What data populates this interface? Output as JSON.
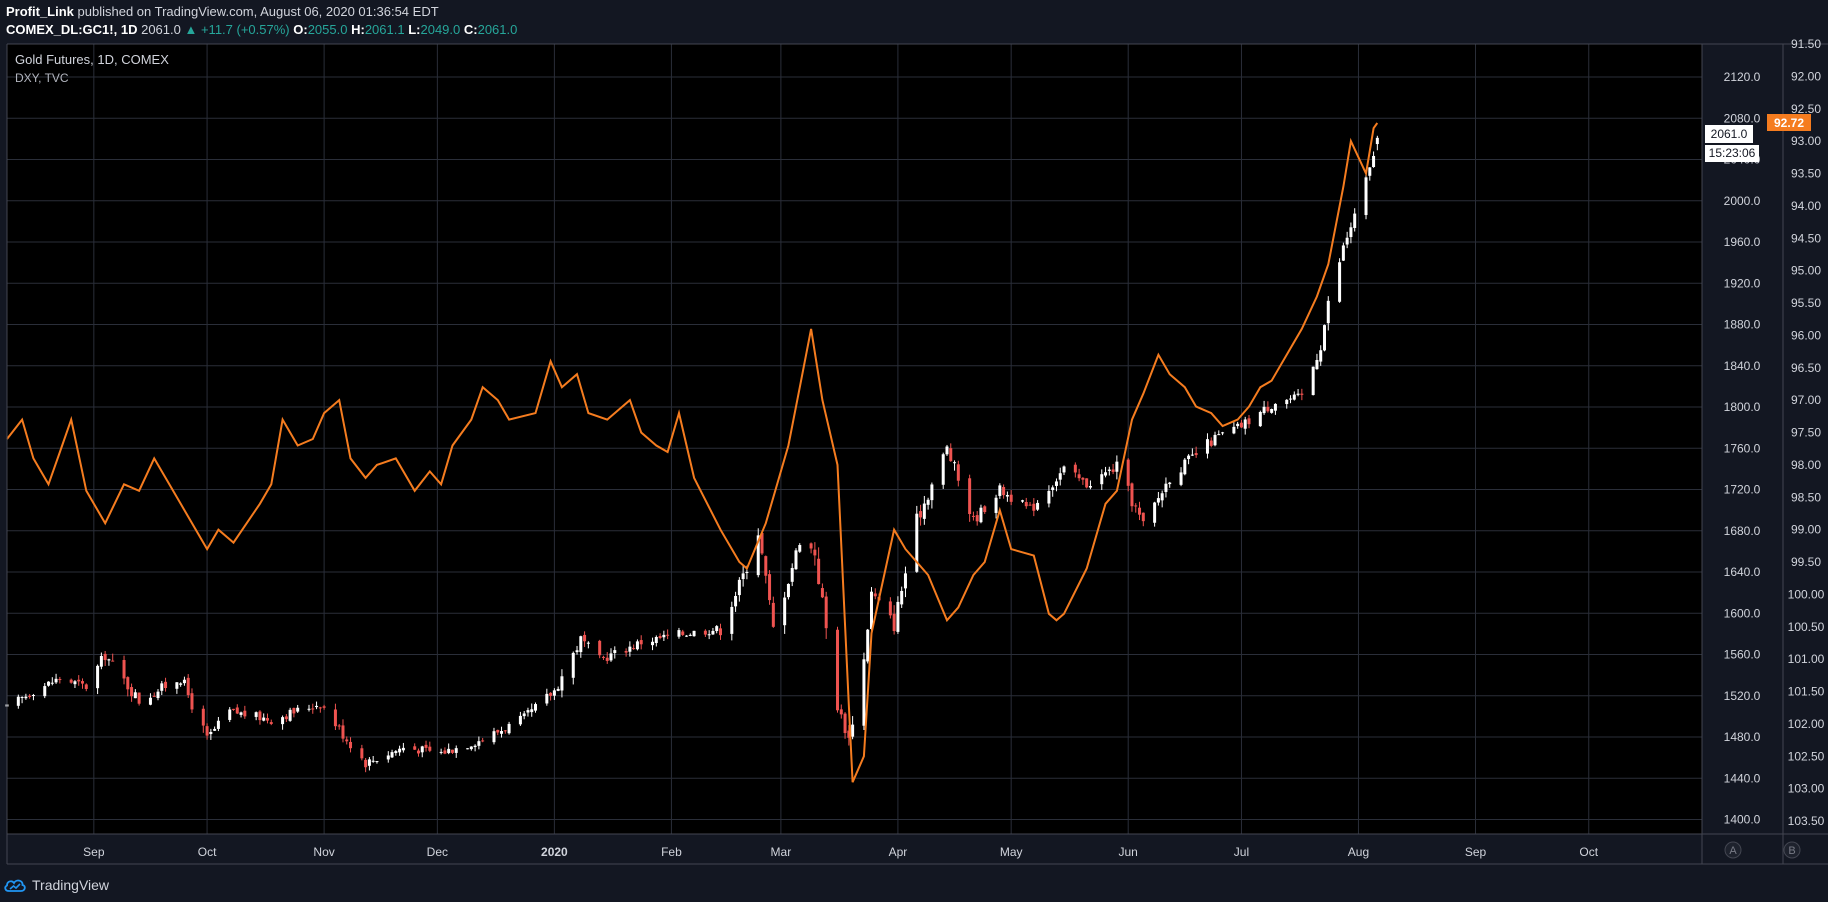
{
  "header": {
    "author": "Profit_Link",
    "published_text": "published on TradingView.com, August 06, 2020 01:36:54 EDT",
    "symbol": "COMEX_DL:GC1!, 1D",
    "change": "▲ +11.7 (+0.57%)",
    "last": "2061.0",
    "o_label": "O:",
    "o_value": "2055.0",
    "h_label": "H:",
    "h_value": "2061.1",
    "l_label": "L:",
    "l_value": "2049.0",
    "c_label": "C:",
    "c_value": "2061.0"
  },
  "legend": {
    "main": "Gold Futures, 1D, COMEX",
    "compare": "DXY, TVC"
  },
  "price_badge": "2061.0",
  "time_badge": "15:23:06",
  "dxy_badge": "92.72",
  "scale_buttons": [
    "A",
    "B"
  ],
  "footer": {
    "brand": "TradingView"
  },
  "colors": {
    "background": "#131722",
    "plot_background": "#000000",
    "grid": "#2a2e39",
    "dxy_line": "#f57c1f",
    "candle_up": "#ffffff",
    "candle_down": "#ef5350",
    "text": "#d1d4dc"
  },
  "chart_data": {
    "type": "line",
    "title": "Gold Futures, 1D, COMEX",
    "x_axis_labels": [
      "Sep",
      "Oct",
      "Nov",
      "Dec",
      "2020",
      "Feb",
      "Mar",
      "Apr",
      "May",
      "Jun",
      "Jul",
      "Aug",
      "Sep",
      "Oct"
    ],
    "x_range": [
      "2019-08-09",
      "2020-10-31"
    ],
    "axes": {
      "gold_axis": {
        "ticks": [
          2120,
          2080,
          2040,
          2000,
          1960,
          1920,
          1880,
          1840,
          1800,
          1760,
          1720,
          1680,
          1640,
          1600,
          1560,
          1520,
          1480,
          1440,
          1400
        ],
        "range": [
          1386,
          2152
        ]
      },
      "dxy_axis": {
        "inverted": true,
        "ticks": [
          91.5,
          92.0,
          92.5,
          93.0,
          93.5,
          94.0,
          94.5,
          95.0,
          95.5,
          96.0,
          96.5,
          97.0,
          97.5,
          98.0,
          98.5,
          99.0,
          99.5,
          100.0,
          100.5,
          101.0,
          101.5,
          102.0,
          102.5,
          103.0,
          103.5
        ],
        "range": [
          91.5,
          103.7
        ]
      }
    },
    "grid": true,
    "series": [
      {
        "name": "Gold Futures, 1D, COMEX",
        "type": "candlestick",
        "axis": "gold_axis",
        "points": [
          [
            "2019-08-09",
            1508
          ],
          [
            "2019-08-16",
            1525
          ],
          [
            "2019-08-23",
            1537
          ],
          [
            "2019-08-30",
            1529
          ],
          [
            "2019-09-04",
            1560
          ],
          [
            "2019-09-13",
            1515
          ],
          [
            "2019-09-24",
            1538
          ],
          [
            "2019-10-01",
            1478
          ],
          [
            "2019-10-07",
            1505
          ],
          [
            "2019-10-18",
            1497
          ],
          [
            "2019-10-31",
            1513
          ],
          [
            "2019-11-07",
            1478
          ],
          [
            "2019-11-12",
            1455
          ],
          [
            "2019-11-22",
            1470
          ],
          [
            "2019-12-02",
            1465
          ],
          [
            "2019-12-13",
            1478
          ],
          [
            "2019-12-24",
            1498
          ],
          [
            "2020-01-01",
            1525
          ],
          [
            "2020-01-08",
            1575
          ],
          [
            "2020-01-13",
            1555
          ],
          [
            "2020-01-24",
            1572
          ],
          [
            "2020-02-03",
            1580
          ],
          [
            "2020-02-14",
            1585
          ],
          [
            "2020-02-21",
            1645
          ],
          [
            "2020-02-24",
            1680
          ],
          [
            "2020-02-28",
            1585
          ],
          [
            "2020-03-06",
            1670
          ],
          [
            "2020-03-10",
            1660
          ],
          [
            "2020-03-16",
            1510
          ],
          [
            "2020-03-19",
            1478
          ],
          [
            "2020-03-23",
            1555
          ],
          [
            "2020-03-25",
            1620
          ],
          [
            "2020-03-31",
            1590
          ],
          [
            "2020-04-06",
            1690
          ],
          [
            "2020-04-14",
            1760
          ],
          [
            "2020-04-21",
            1690
          ],
          [
            "2020-04-28",
            1720
          ],
          [
            "2020-05-06",
            1700
          ],
          [
            "2020-05-15",
            1740
          ],
          [
            "2020-05-21",
            1725
          ],
          [
            "2020-05-29",
            1742
          ],
          [
            "2020-06-05",
            1685
          ],
          [
            "2020-06-12",
            1732
          ],
          [
            "2020-06-24",
            1770
          ],
          [
            "2020-07-01",
            1782
          ],
          [
            "2020-07-10",
            1805
          ],
          [
            "2020-07-17",
            1810
          ],
          [
            "2020-07-22",
            1860
          ],
          [
            "2020-07-24",
            1900
          ],
          [
            "2020-07-28",
            1955
          ],
          [
            "2020-07-31",
            1985
          ],
          [
            "2020-08-04",
            2030
          ],
          [
            "2020-08-06",
            2061
          ]
        ]
      },
      {
        "name": "DXY, TVC",
        "type": "line",
        "axis": "dxy_axis",
        "points": [
          [
            "2019-08-09",
            97.6
          ],
          [
            "2019-08-13",
            97.3
          ],
          [
            "2019-08-16",
            97.9
          ],
          [
            "2019-08-20",
            98.3
          ],
          [
            "2019-08-23",
            97.8
          ],
          [
            "2019-08-26",
            97.3
          ],
          [
            "2019-08-30",
            98.4
          ],
          [
            "2019-09-04",
            98.9
          ],
          [
            "2019-09-09",
            98.3
          ],
          [
            "2019-09-13",
            98.4
          ],
          [
            "2019-09-17",
            97.9
          ],
          [
            "2019-09-20",
            98.2
          ],
          [
            "2019-09-24",
            98.6
          ],
          [
            "2019-10-01",
            99.3
          ],
          [
            "2019-10-04",
            99.0
          ],
          [
            "2019-10-08",
            99.2
          ],
          [
            "2019-10-15",
            98.6
          ],
          [
            "2019-10-18",
            98.3
          ],
          [
            "2019-10-21",
            97.3
          ],
          [
            "2019-10-25",
            97.7
          ],
          [
            "2019-10-29",
            97.6
          ],
          [
            "2019-11-01",
            97.2
          ],
          [
            "2019-11-05",
            97.0
          ],
          [
            "2019-11-08",
            97.9
          ],
          [
            "2019-11-12",
            98.2
          ],
          [
            "2019-11-15",
            98.0
          ],
          [
            "2019-11-20",
            97.9
          ],
          [
            "2019-11-25",
            98.4
          ],
          [
            "2019-11-29",
            98.1
          ],
          [
            "2019-12-02",
            98.3
          ],
          [
            "2019-12-05",
            97.7
          ],
          [
            "2019-12-10",
            97.3
          ],
          [
            "2019-12-13",
            96.8
          ],
          [
            "2019-12-17",
            97.0
          ],
          [
            "2019-12-20",
            97.3
          ],
          [
            "2019-12-27",
            97.2
          ],
          [
            "2019-12-31",
            96.4
          ],
          [
            "2020-01-03",
            96.8
          ],
          [
            "2020-01-07",
            96.6
          ],
          [
            "2020-01-10",
            97.2
          ],
          [
            "2020-01-15",
            97.3
          ],
          [
            "2020-01-21",
            97.0
          ],
          [
            "2020-01-24",
            97.5
          ],
          [
            "2020-01-28",
            97.7
          ],
          [
            "2020-01-31",
            97.8
          ],
          [
            "2020-02-03",
            97.2
          ],
          [
            "2020-02-07",
            98.2
          ],
          [
            "2020-02-14",
            99.0
          ],
          [
            "2020-02-19",
            99.5
          ],
          [
            "2020-02-21",
            99.6
          ],
          [
            "2020-02-26",
            98.9
          ],
          [
            "2020-03-03",
            97.7
          ],
          [
            "2020-03-06",
            96.8
          ],
          [
            "2020-03-09",
            95.9
          ],
          [
            "2020-03-12",
            97.0
          ],
          [
            "2020-03-16",
            98.0
          ],
          [
            "2020-03-19",
            101.7
          ],
          [
            "2020-03-20",
            102.9
          ],
          [
            "2020-03-23",
            102.5
          ],
          [
            "2020-03-25",
            100.6
          ],
          [
            "2020-03-31",
            99.0
          ],
          [
            "2020-04-03",
            99.3
          ],
          [
            "2020-04-09",
            99.7
          ],
          [
            "2020-04-14",
            100.4
          ],
          [
            "2020-04-17",
            100.2
          ],
          [
            "2020-04-21",
            99.7
          ],
          [
            "2020-04-24",
            99.5
          ],
          [
            "2020-04-28",
            98.7
          ],
          [
            "2020-05-01",
            99.3
          ],
          [
            "2020-05-07",
            99.4
          ],
          [
            "2020-05-11",
            100.3
          ],
          [
            "2020-05-13",
            100.4
          ],
          [
            "2020-05-15",
            100.3
          ],
          [
            "2020-05-21",
            99.6
          ],
          [
            "2020-05-26",
            98.6
          ],
          [
            "2020-05-29",
            98.4
          ],
          [
            "2020-06-02",
            97.3
          ],
          [
            "2020-06-05",
            96.9
          ],
          [
            "2020-06-09",
            96.3
          ],
          [
            "2020-06-12",
            96.6
          ],
          [
            "2020-06-16",
            96.8
          ],
          [
            "2020-06-19",
            97.1
          ],
          [
            "2020-06-23",
            97.2
          ],
          [
            "2020-06-26",
            97.4
          ],
          [
            "2020-06-30",
            97.3
          ],
          [
            "2020-07-03",
            97.1
          ],
          [
            "2020-07-06",
            96.8
          ],
          [
            "2020-07-09",
            96.7
          ],
          [
            "2020-07-14",
            96.2
          ],
          [
            "2020-07-17",
            95.9
          ],
          [
            "2020-07-21",
            95.4
          ],
          [
            "2020-07-24",
            94.9
          ],
          [
            "2020-07-28",
            93.7
          ],
          [
            "2020-07-30",
            93.0
          ],
          [
            "2020-08-03",
            93.5
          ],
          [
            "2020-08-05",
            92.8
          ],
          [
            "2020-08-06",
            92.72
          ]
        ]
      }
    ]
  }
}
